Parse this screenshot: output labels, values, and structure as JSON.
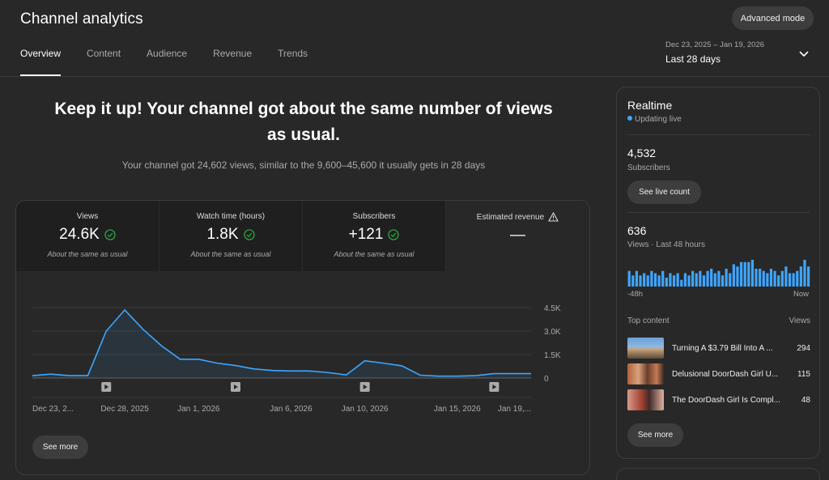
{
  "header": {
    "title": "Channel analytics",
    "advanced_mode": "Advanced mode",
    "tabs": [
      {
        "label": "Overview",
        "active": true
      },
      {
        "label": "Content",
        "active": false
      },
      {
        "label": "Audience",
        "active": false
      },
      {
        "label": "Revenue",
        "active": false
      },
      {
        "label": "Trends",
        "active": false
      }
    ],
    "date_range": "Dec 23, 2025 – Jan 19, 2026",
    "period": "Last 28 days"
  },
  "summary": {
    "headline": "Keep it up! Your channel got about the same number of views as usual.",
    "subline": "Your channel got 24,602 views, similar to the 9,600–45,600 it usually gets in 28 days"
  },
  "metrics": [
    {
      "label": "Views",
      "value": "24.6K",
      "note": "About the same as usual",
      "check": true
    },
    {
      "label": "Watch time (hours)",
      "value": "1.8K",
      "note": "About the same as usual",
      "check": true
    },
    {
      "label": "Subscribers",
      "value": "+121",
      "note": "About the same as usual",
      "check": true
    },
    {
      "label": "Estimated revenue",
      "value": "—",
      "note": "",
      "warn": true
    }
  ],
  "chart_data": {
    "type": "area",
    "x": [
      "Dec 23, 2025",
      "Dec 24, 2025",
      "Dec 25, 2025",
      "Dec 26, 2025",
      "Dec 27, 2025",
      "Dec 28, 2025",
      "Dec 29, 2025",
      "Dec 30, 2025",
      "Dec 31, 2025",
      "Jan 1, 2026",
      "Jan 2, 2026",
      "Jan 3, 2026",
      "Jan 4, 2026",
      "Jan 5, 2026",
      "Jan 6, 2026",
      "Jan 7, 2026",
      "Jan 8, 2026",
      "Jan 9, 2026",
      "Jan 10, 2026",
      "Jan 11, 2026",
      "Jan 12, 2026",
      "Jan 13, 2026",
      "Jan 14, 2026",
      "Jan 15, 2026",
      "Jan 16, 2026",
      "Jan 17, 2026",
      "Jan 18, 2026",
      "Jan 19, 2026"
    ],
    "series": [
      {
        "values": [
          150,
          250,
          150,
          150,
          3000,
          4350,
          3100,
          2050,
          1200,
          1200,
          950,
          800,
          580,
          480,
          450,
          450,
          350,
          200,
          1100,
          950,
          780,
          180,
          120,
          120,
          150,
          280,
          280,
          280
        ]
      }
    ],
    "ylim": [
      0,
      4500
    ],
    "yticks": [
      "4.5K",
      "3.0K",
      "1.5K",
      "0"
    ],
    "ytick_values": [
      4500,
      3000,
      1500,
      0
    ],
    "xtick_labels": [
      "Dec 23, 2...",
      "Dec 28, 2025",
      "Jan 1, 2026",
      "Jan 6, 2026",
      "Jan 10, 2026",
      "Jan 15, 2026",
      "Jan 19,..."
    ],
    "xtick_index": [
      0,
      5,
      9,
      14,
      18,
      23,
      27
    ],
    "video_markers": [
      4,
      11,
      18,
      25
    ],
    "grid": true,
    "color": "#3ea6ff"
  },
  "card_see_more": "See more",
  "realtime": {
    "title": "Realtime",
    "live": "Updating live",
    "subscribers_value": "4,532",
    "subscribers_label": "Subscribers",
    "see_live_count": "See live count",
    "views_value": "636",
    "views_label": "Views · Last 48 hours",
    "bars": [
      7,
      5,
      7,
      5,
      6,
      5,
      7,
      6,
      5,
      7,
      4,
      6,
      5,
      6,
      3,
      6,
      5,
      7,
      6,
      7,
      5,
      7,
      8,
      6,
      7,
      5,
      8,
      6,
      10,
      9,
      11,
      11,
      11,
      12,
      8,
      8,
      7,
      6,
      8,
      7,
      5,
      7,
      9,
      6,
      6,
      7,
      9,
      12,
      9
    ],
    "axis_start": "-48h",
    "axis_end": "Now",
    "top_content_label": "Top content",
    "views_col": "Views",
    "top_content": [
      {
        "title": "Turning A $3.79 Bill Into A ...",
        "views": "294"
      },
      {
        "title": "Delusional DoorDash Girl U...",
        "views": "115"
      },
      {
        "title": "The DoorDash Girl Is Compl...",
        "views": "48"
      }
    ],
    "see_more": "See more"
  }
}
